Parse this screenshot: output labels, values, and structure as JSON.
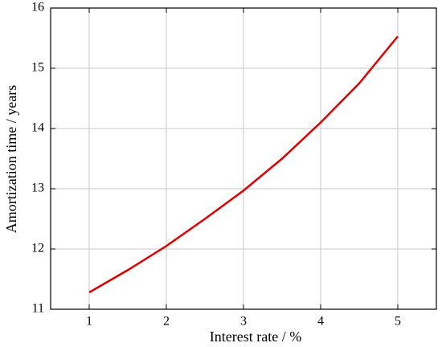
{
  "chart_data": {
    "type": "line",
    "x_label": "Interest rate / %",
    "y_label": "Amortization time / years",
    "x": [
      1,
      1.5,
      2,
      2.5,
      3,
      3.5,
      4,
      4.5,
      5
    ],
    "series": [
      {
        "color": "#e00000",
        "values": [
          11.28,
          11.65,
          12.05,
          12.5,
          12.97,
          13.5,
          14.1,
          14.75,
          15.53
        ]
      }
    ],
    "xlim": [
      0.5,
      5.5
    ],
    "xticks": [
      1,
      2,
      3,
      4,
      5
    ],
    "ylim": [
      11,
      16
    ],
    "yticks": [
      11,
      12,
      13,
      14,
      15,
      16
    ],
    "grid": true
  }
}
